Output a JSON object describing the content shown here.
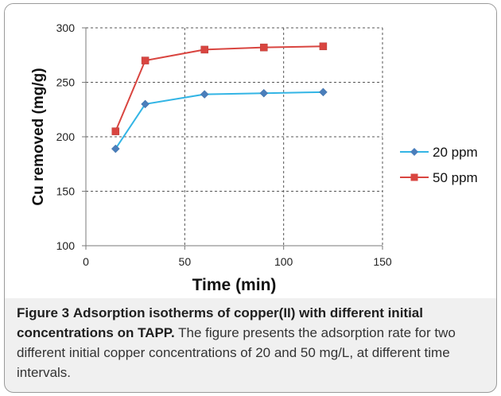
{
  "chart_data": {
    "type": "line",
    "title": "",
    "xlabel": "Time (min)",
    "ylabel": "Cu removed (mg/g)",
    "xlim": [
      0,
      150
    ],
    "ylim": [
      100,
      300
    ],
    "xticks": [
      0,
      50,
      100,
      150
    ],
    "yticks": [
      100,
      150,
      200,
      250,
      300
    ],
    "grid": true,
    "legend_position": "right",
    "series": [
      {
        "name": "20 ppm",
        "color": "#33b5e5",
        "marker": "diamond",
        "x": [
          15,
          30,
          60,
          90,
          120
        ],
        "y": [
          189,
          230,
          239,
          240,
          241
        ]
      },
      {
        "name": "50 ppm",
        "color": "#d94540",
        "marker": "square",
        "x": [
          15,
          30,
          60,
          90,
          120
        ],
        "y": [
          205,
          270,
          280,
          282,
          283
        ]
      }
    ]
  },
  "caption": {
    "label": "Figure 3",
    "title": "Adsorption isotherms of copper(II) with different initial concentrations on TAPP.",
    "body": "The figure presents the adsorption rate for two different initial copper concentrations of 20 and 50 mg/L, at different time intervals."
  }
}
